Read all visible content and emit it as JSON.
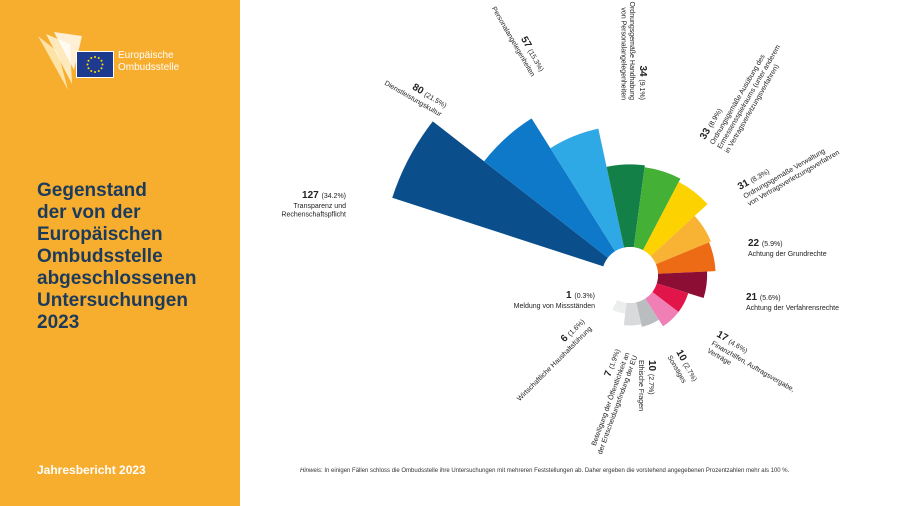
{
  "sidebar": {
    "org_name_line1": "Europäische",
    "org_name_line2": "Ombudsstelle",
    "title_lines": [
      "Gegenstand",
      "der von der",
      "Europäischen",
      "Ombudsstelle",
      "abgeschlossenen",
      "Untersuchungen",
      "2023"
    ],
    "report": "Jahresbericht 2023",
    "colors": {
      "background": "#f7ad2e",
      "title": "#1c3b5c"
    }
  },
  "note": {
    "label": "Hinweis",
    "text": ": In einigen Fällen schloss die Ombudsstelle ihre Untersuchungen mit mehreren Feststellungen ab. Daher ergeben die vorstehend angegebenen Prozentzahlen mehr als 100 %."
  },
  "chart_data": {
    "type": "pie",
    "title": "",
    "slices": [
      {
        "value": 127,
        "pct": "(34.2%)",
        "label": [
          "Transparenz und",
          "Rechenschaftspflicht"
        ],
        "color": "#0a4f8c"
      },
      {
        "value": 80,
        "pct": "(21.5%)",
        "label": [
          "Dienstleistungskultur"
        ],
        "color": "#0f79c9"
      },
      {
        "value": 57,
        "pct": "(15.3%)",
        "label": [
          "Personalangelegenheiten"
        ],
        "color": "#2fa8e6"
      },
      {
        "value": 34,
        "pct": "(9.1%)",
        "label": [
          "Ordnungsgemäße Handhabung",
          "von Personalangelegenheiten"
        ],
        "color": "#128047"
      },
      {
        "value": 33,
        "pct": "(8.9%)",
        "label": [
          "Ordnungsgemäße Ausübung des",
          "Ermessensspielraums (unter anderem",
          "in Vertragsverletzungsverfahren)"
        ],
        "color": "#44b035"
      },
      {
        "value": 31,
        "pct": "(8.3%)",
        "label": [
          "Ordnungsgemäße Verwaltung",
          "von Vertragsverletzungsverfahren"
        ],
        "color": "#fcd200"
      },
      {
        "value": 22,
        "pct": "(5.9%)",
        "label": [
          "Achtung der Grundrechte"
        ],
        "color": "#f8b334"
      },
      {
        "value": 21,
        "pct": "(5.6%)",
        "label": [
          "Achtung der Verfahrensrechte"
        ],
        "color": "#ed6b14"
      },
      {
        "value": 17,
        "pct": "(4.6%)",
        "label": [
          "Finanzhilfen, Auftragsvergabe,",
          "Verträge"
        ],
        "color": "#8c0e35"
      },
      {
        "value": 10,
        "pct": "(2.7%)",
        "label": [
          "Sonstiges"
        ],
        "color": "#e2154a"
      },
      {
        "value": 10,
        "pct": "(2.7%)",
        "label": [
          "Ethische Fragen"
        ],
        "color": "#f07fb6"
      },
      {
        "value": 7,
        "pct": "(1.9%)",
        "label": [
          "Beteiligung der Öffentlichkeit an",
          "der Entscheidungsfindung der EU"
        ],
        "color": "#b9bdc0"
      },
      {
        "value": 6,
        "pct": "(1.6%)",
        "label": [
          "Wirtschaftliche Haushaltsführung"
        ],
        "color": "#d8dadc"
      },
      {
        "value": 1,
        "pct": "(0.3%)",
        "label": [
          "Meldung von Missständen"
        ],
        "color": "#eceded"
      }
    ]
  }
}
